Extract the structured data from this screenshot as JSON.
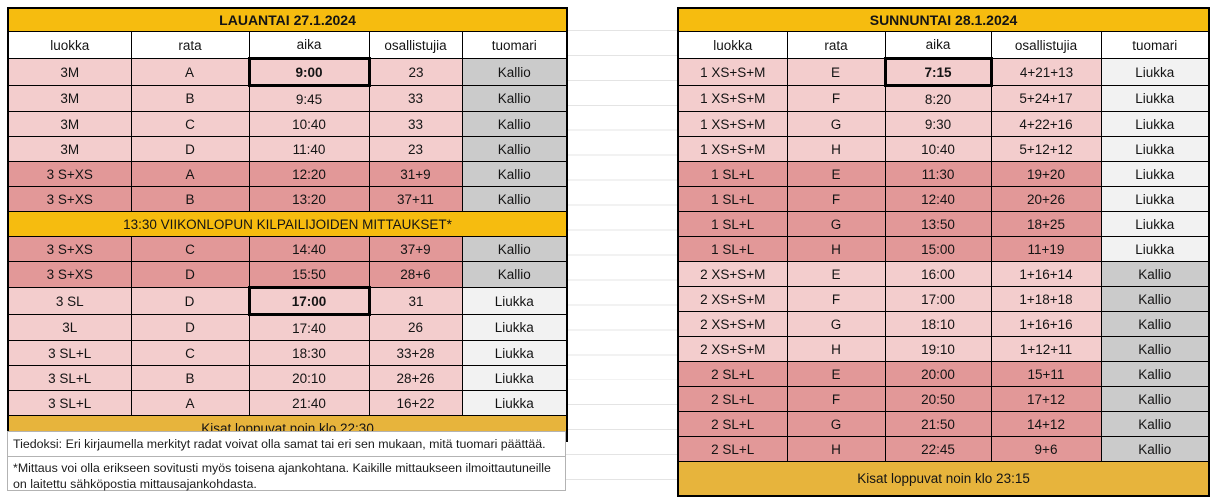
{
  "colors": {
    "gold": "#F6BC0F",
    "footer_gold": "#E7B43C",
    "light_pink": "#F3CDCD",
    "dark_pink": "#E29898",
    "kallio_gray": "#CBCBCB",
    "liukka_gray": "#F2F2F2",
    "gridline": "#E4E4E4"
  },
  "columns": [
    "luokka",
    "rata",
    "aika",
    "osallistujia",
    "tuomari"
  ],
  "saturday": {
    "title": "LAUANTAI 27.1.2024",
    "rows": [
      {
        "luokka": "3M",
        "rata": "A",
        "aika": "9:00",
        "osallistujia": "23",
        "tuomari": "Kallio",
        "shade": "light",
        "highlight": "aika"
      },
      {
        "luokka": "3M",
        "rata": "B",
        "aika": "9:45",
        "osallistujia": "33",
        "tuomari": "Kallio",
        "shade": "light"
      },
      {
        "luokka": "3M",
        "rata": "C",
        "aika": "10:40",
        "osallistujia": "33",
        "tuomari": "Kallio",
        "shade": "light"
      },
      {
        "luokka": "3M",
        "rata": "D",
        "aika": "11:40",
        "osallistujia": "23",
        "tuomari": "Kallio",
        "shade": "light"
      },
      {
        "luokka": "3 S+XS",
        "rata": "A",
        "aika": "12:20",
        "osallistujia": "31+9",
        "tuomari": "Kallio",
        "shade": "dark"
      },
      {
        "luokka": "3 S+XS",
        "rata": "B",
        "aika": "13:20",
        "osallistujia": "37+11",
        "tuomari": "Kallio",
        "shade": "dark"
      },
      {
        "type": "banner",
        "text": "13:30 VIIKONLOPUN KILPAILIJOIDEN MITTAUKSET*"
      },
      {
        "luokka": "3 S+XS",
        "rata": "C",
        "aika": "14:40",
        "osallistujia": "37+9",
        "tuomari": "Kallio",
        "shade": "dark"
      },
      {
        "luokka": "3 S+XS",
        "rata": "D",
        "aika": "15:50",
        "osallistujia": "28+6",
        "tuomari": "Kallio",
        "shade": "dark"
      },
      {
        "luokka": "3 SL",
        "rata": "D",
        "aika": "17:00",
        "osallistujia": "31",
        "tuomari": "Liukka",
        "shade": "light",
        "highlight": "aika"
      },
      {
        "luokka": "3L",
        "rata": "D",
        "aika": "17:40",
        "osallistujia": "26",
        "tuomari": "Liukka",
        "shade": "light"
      },
      {
        "luokka": "3 SL+L",
        "rata": "C",
        "aika": "18:30",
        "osallistujia": "33+28",
        "tuomari": "Liukka",
        "shade": "light"
      },
      {
        "luokka": "3 SL+L",
        "rata": "B",
        "aika": "20:10",
        "osallistujia": "28+26",
        "tuomari": "Liukka",
        "shade": "light"
      },
      {
        "luokka": "3 SL+L",
        "rata": "A",
        "aika": "21:40",
        "osallistujia": "16+22",
        "tuomari": "Liukka",
        "shade": "light"
      }
    ],
    "footer": "Kisat loppuvat noin klo 22:30",
    "notes": [
      "Tiedoksi: Eri kirjaumella merkityt radat voivat olla samat tai eri sen mukaan, mitä tuomari päättää.",
      "*Mittaus voi olla erikseen sovitusti myös toisena ajankohtana. Kaikille mittaukseen ilmoittautuneille on laitettu sähköpostia mittausajankohdasta."
    ]
  },
  "sunday": {
    "title": "SUNNUNTAI 28.1.2024",
    "rows": [
      {
        "luokka": "1 XS+S+M",
        "rata": "E",
        "aika": "7:15",
        "osallistujia": "4+21+13",
        "tuomari": "Liukka",
        "shade": "light",
        "highlight": "aika"
      },
      {
        "luokka": "1 XS+S+M",
        "rata": "F",
        "aika": "8:20",
        "osallistujia": "5+24+17",
        "tuomari": "Liukka",
        "shade": "light"
      },
      {
        "luokka": "1 XS+S+M",
        "rata": "G",
        "aika": "9:30",
        "osallistujia": "4+22+16",
        "tuomari": "Liukka",
        "shade": "light"
      },
      {
        "luokka": "1 XS+S+M",
        "rata": "H",
        "aika": "10:40",
        "osallistujia": "5+12+12",
        "tuomari": "Liukka",
        "shade": "light"
      },
      {
        "luokka": "1 SL+L",
        "rata": "E",
        "aika": "11:30",
        "osallistujia": "19+20",
        "tuomari": "Liukka",
        "shade": "dark"
      },
      {
        "luokka": "1 SL+L",
        "rata": "F",
        "aika": "12:40",
        "osallistujia": "20+26",
        "tuomari": "Liukka",
        "shade": "dark"
      },
      {
        "luokka": "1 SL+L",
        "rata": "G",
        "aika": "13:50",
        "osallistujia": "18+25",
        "tuomari": "Liukka",
        "shade": "dark"
      },
      {
        "luokka": "1 SL+L",
        "rata": "H",
        "aika": "15:00",
        "osallistujia": "11+19",
        "tuomari": "Liukka",
        "shade": "dark"
      },
      {
        "luokka": "2 XS+S+M",
        "rata": "E",
        "aika": "16:00",
        "osallistujia": "1+16+14",
        "tuomari": "Kallio",
        "shade": "light"
      },
      {
        "luokka": "2 XS+S+M",
        "rata": "F",
        "aika": "17:00",
        "osallistujia": "1+18+18",
        "tuomari": "Kallio",
        "shade": "light"
      },
      {
        "luokka": "2 XS+S+M",
        "rata": "G",
        "aika": "18:10",
        "osallistujia": "1+16+16",
        "tuomari": "Kallio",
        "shade": "light"
      },
      {
        "luokka": "2 XS+S+M",
        "rata": "H",
        "aika": "19:10",
        "osallistujia": "1+12+11",
        "tuomari": "Kallio",
        "shade": "light"
      },
      {
        "luokka": "2 SL+L",
        "rata": "E",
        "aika": "20:00",
        "osallistujia": "15+11",
        "tuomari": "Kallio",
        "shade": "dark"
      },
      {
        "luokka": "2 SL+L",
        "rata": "F",
        "aika": "20:50",
        "osallistujia": "17+12",
        "tuomari": "Kallio",
        "shade": "dark"
      },
      {
        "luokka": "2 SL+L",
        "rata": "G",
        "aika": "21:50",
        "osallistujia": "14+12",
        "tuomari": "Kallio",
        "shade": "dark"
      },
      {
        "luokka": "2 SL+L",
        "rata": "H",
        "aika": "22:45",
        "osallistujia": "9+6",
        "tuomari": "Kallio",
        "shade": "dark"
      }
    ],
    "footer": "Kisat loppuvat noin klo 23:15"
  }
}
